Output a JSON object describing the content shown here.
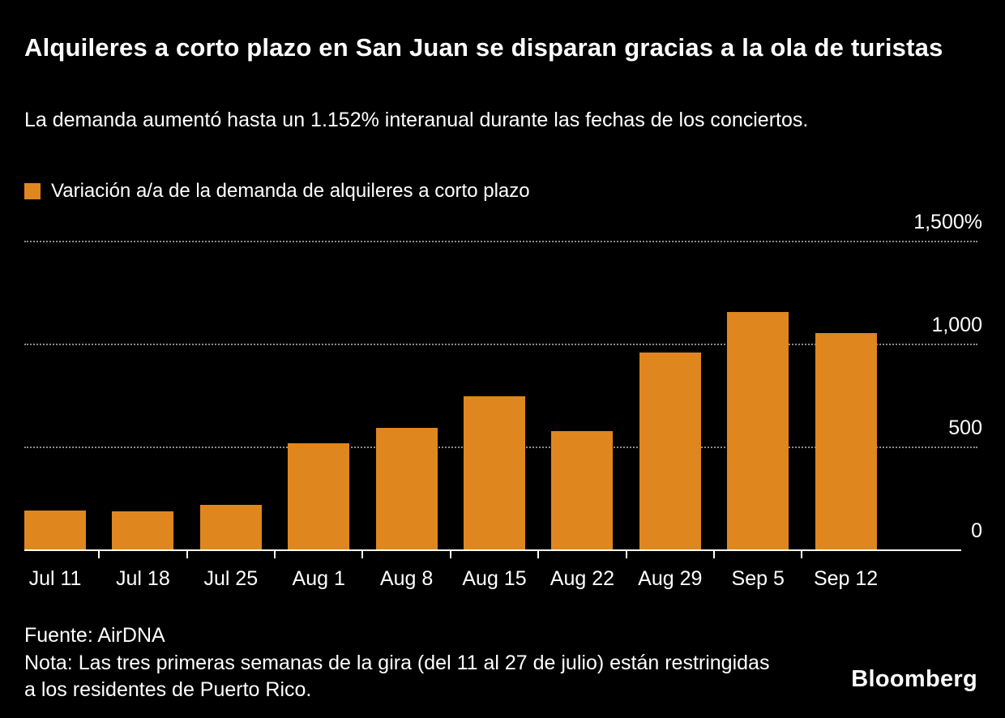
{
  "chart_data": {
    "type": "bar",
    "title": "Alquileres a corto plazo en San Juan se disparan gracias a la ola de turistas",
    "subtitle": "La demanda aumentó hasta un 1.152% interanual durante las fechas de los conciertos.",
    "legend": [
      {
        "label": "Variación a/a de la demanda de alquileres a corto plazo",
        "color": "#E0861F"
      }
    ],
    "legend_position": "top-left",
    "categories": [
      "Jul 11",
      "Jul 18",
      "Jul 25",
      "Aug 1",
      "Aug 8",
      "Aug 15",
      "Aug 22",
      "Aug 29",
      "Sep 5",
      "Sep 12"
    ],
    "values": [
      190,
      185,
      215,
      515,
      590,
      745,
      575,
      955,
      1152,
      1050
    ],
    "unit": "%",
    "xlabel": "",
    "ylabel": "",
    "ylim": [
      0,
      1500
    ],
    "yticks": [
      {
        "value": 0,
        "label": "0"
      },
      {
        "value": 500,
        "label": "500"
      },
      {
        "value": 1000,
        "label": "1,000"
      },
      {
        "value": 1500,
        "label": "1,500%"
      }
    ],
    "grid": "horizontal-dotted",
    "bar_color": "#E0861F",
    "background": "#000000",
    "text_color": "#FFFFFF",
    "grid_color": "#8B8B8B"
  },
  "footer": {
    "source": "Fuente: AirDNA",
    "note": "Nota: Las tres primeras semanas de la gira (del 11 al 27 de julio) están restringidas a los residentes de Puerto Rico.",
    "brand": "Bloomberg"
  }
}
